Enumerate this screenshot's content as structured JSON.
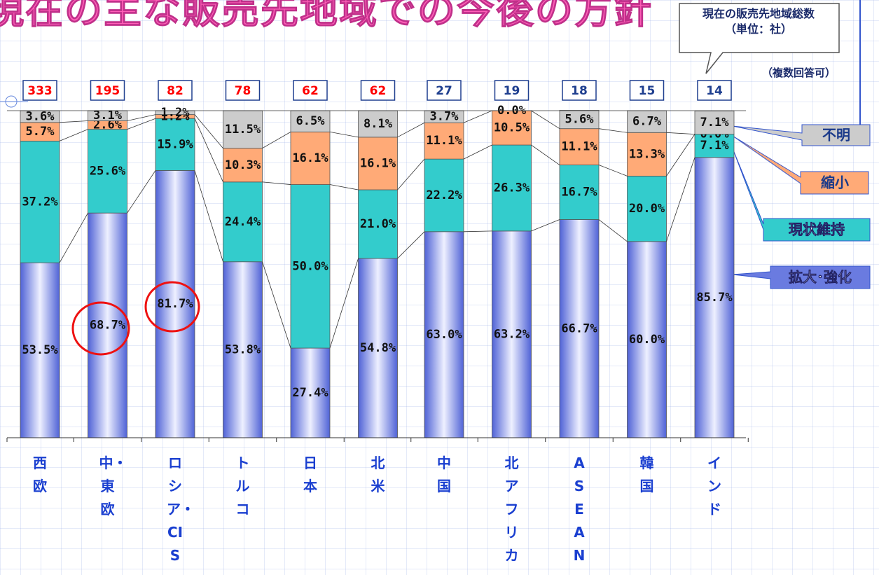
{
  "chart_data": {
    "type": "stacked_bar_100",
    "title": "現在の主な販売先地域での今後の方針",
    "annotation": [
      "現在の販売先地域総数",
      "（単位：社）"
    ],
    "note": "（複数回答可）",
    "categories": [
      "西欧",
      "中・東欧",
      "ロシア・CIS",
      "トルコ",
      "日本",
      "北米",
      "中国",
      "北アフリカ",
      "ASEAN",
      "韓国",
      "インド"
    ],
    "counts": [
      333,
      195,
      82,
      78,
      62,
      62,
      27,
      19,
      18,
      15,
      14
    ],
    "count_colors": [
      "#ff0000",
      "#ff0000",
      "#ff0000",
      "#ff0000",
      "#ff0000",
      "#ff0000",
      "#1f3f8f",
      "#1f3f8f",
      "#1f3f8f",
      "#1f3f8f",
      "#1f3f8f"
    ],
    "ylim": [
      0,
      100
    ],
    "series": [
      {
        "name": "拡大･強化",
        "color": "#6a7be0",
        "values": [
          53.5,
          68.7,
          81.7,
          53.8,
          27.4,
          54.8,
          63.0,
          63.2,
          66.7,
          60.0,
          85.7
        ],
        "value_labels": [
          "53.5%",
          "68.7%",
          "81.7%",
          "53.8%",
          "27.4%",
          "54.8%",
          "63.0%",
          "63.2%",
          "66.7%",
          "60.0%",
          "85.7%"
        ]
      },
      {
        "name": "現状維持",
        "color": "#33cccc",
        "values": [
          37.2,
          25.6,
          15.9,
          24.4,
          50.0,
          21.0,
          22.2,
          26.3,
          16.7,
          20.0,
          7.1
        ],
        "value_labels": [
          "37.2%",
          "25.6%",
          "15.9%",
          "24.4%",
          "50.0%",
          "21.0%",
          "22.2%",
          "26.3%",
          "16.7%",
          "20.0%",
          "7.1%"
        ]
      },
      {
        "name": "縮小",
        "color": "#ffaa77",
        "values": [
          5.7,
          2.6,
          1.2,
          10.3,
          16.1,
          16.1,
          11.1,
          10.5,
          11.1,
          13.3,
          0.0
        ],
        "value_labels": [
          "5.7%",
          "2.6%",
          "1.2%",
          "10.3%",
          "16.1%",
          "16.1%",
          "11.1%",
          "10.5%",
          "11.1%",
          "13.3%",
          "0.0%"
        ]
      },
      {
        "name": "不明",
        "color": "#cccccc",
        "values": [
          3.6,
          3.1,
          1.2,
          11.5,
          6.5,
          8.1,
          3.7,
          0.0,
          5.6,
          6.7,
          7.1
        ],
        "value_labels": [
          "3.6%",
          "3.1%",
          "1.2%",
          "11.5%",
          "6.5%",
          "8.1%",
          "3.7%",
          "0.0%",
          "5.6%",
          "6.7%",
          "7.1%"
        ]
      }
    ]
  }
}
